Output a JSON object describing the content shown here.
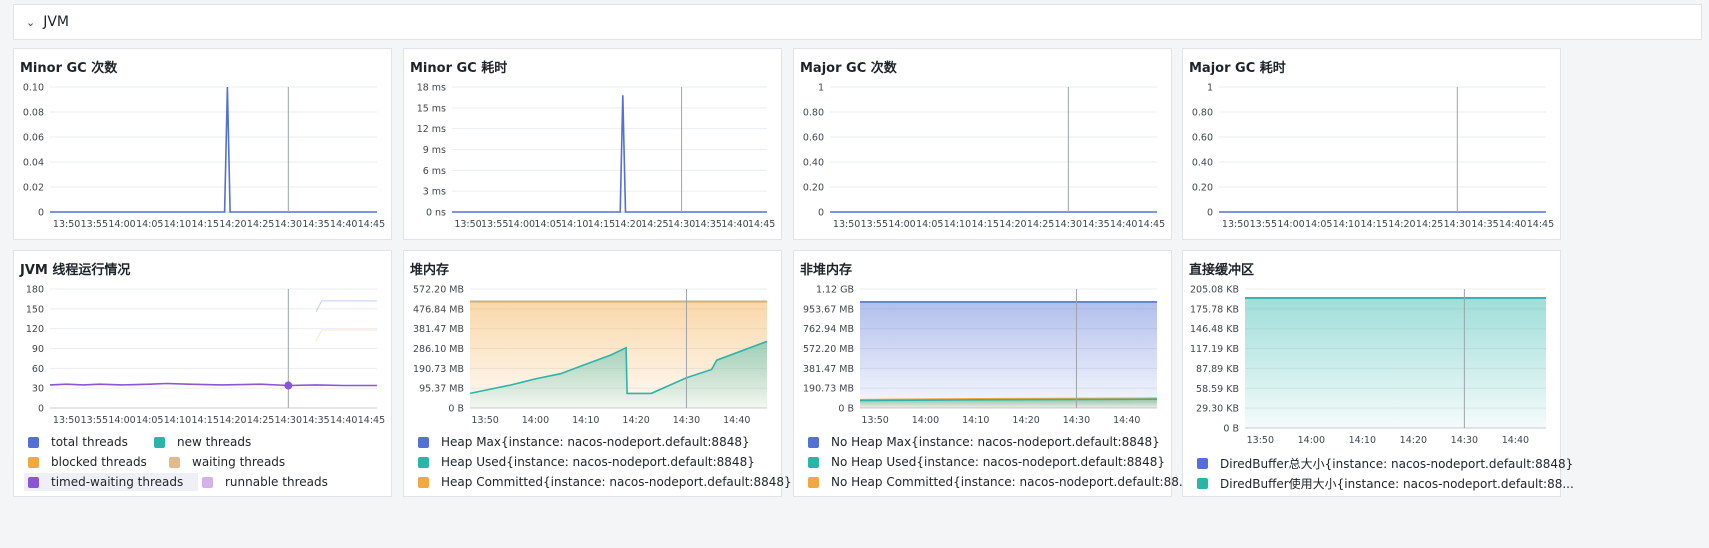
{
  "section": {
    "title": "JVM"
  },
  "colors": {
    "blue": "#5470d6",
    "green": "#2bb5aa",
    "orange": "#f2a741",
    "tan": "#e5b98a",
    "purple": "#8c55d6",
    "lilac": "#d7b0ea",
    "grid": "#ebedf0",
    "axis": "#c9ccd2"
  },
  "top_panels": [
    {
      "title": "Minor GC 次数"
    },
    {
      "title": "Minor GC 耗时"
    },
    {
      "title": "Major GC 次数"
    },
    {
      "title": "Major GC 耗时"
    }
  ],
  "bottom_panels": [
    {
      "title": "JVM 线程运行情况",
      "legend": [
        {
          "label": "total threads",
          "color": "#5470d6"
        },
        {
          "label": "new threads",
          "color": "#2bb5aa"
        },
        {
          "label": "blocked threads",
          "color": "#f2a741"
        },
        {
          "label": "waiting threads",
          "color": "#e5b98a"
        },
        {
          "label": "timed-waiting threads",
          "color": "#8c55d6"
        },
        {
          "label": "runnable threads",
          "color": "#d7b0ea"
        }
      ]
    },
    {
      "title": "堆内存",
      "legend": [
        {
          "label": "Heap Max{instance: nacos-nodeport.default:8848}",
          "color": "#5470d6"
        },
        {
          "label": "Heap Used{instance: nacos-nodeport.default:8848}",
          "color": "#2bb5aa"
        },
        {
          "label": "Heap Committed{instance: nacos-nodeport.default:8848}",
          "color": "#f2a741"
        }
      ]
    },
    {
      "title": "非堆内存",
      "legend": [
        {
          "label": "No Heap Max{instance: nacos-nodeport.default:8848}",
          "color": "#5470d6"
        },
        {
          "label": "No Heap Used{instance: nacos-nodeport.default:8848}",
          "color": "#2bb5aa"
        },
        {
          "label": "No Heap Committed{instance: nacos-nodeport.default:88...",
          "color": "#f2a741"
        }
      ]
    },
    {
      "title": "直接缓冲区",
      "legend": [
        {
          "label": "DiredBuffer总大小{instance: nacos-nodeport.default:8848}",
          "color": "#5470d6"
        },
        {
          "label": "DiredBuffer使用大小{instance: nacos-nodeport.default:88...",
          "color": "#2bb5aa"
        }
      ]
    }
  ],
  "chart_data": [
    {
      "type": "line",
      "title": "Minor GC 次数",
      "yticks": [
        "0",
        "0.02",
        "0.04",
        "0.06",
        "0.08",
        "0.10"
      ],
      "ylim": [
        0,
        0.1
      ],
      "xticks": [
        "13:50",
        "13:55",
        "14:00",
        "14:05",
        "14:10",
        "14:15",
        "14:20",
        "14:25",
        "14:30",
        "14:35",
        "14:40",
        "14:45"
      ],
      "xlim": [
        "13:47",
        "14:46"
      ],
      "cursor": "14:30",
      "series": [
        {
          "color": "#5470d6",
          "points": [
            [
              "13:47",
              0
            ],
            [
              "14:18.5",
              0
            ],
            [
              "14:19",
              0.1
            ],
            [
              "14:19.5",
              0
            ],
            [
              "14:46",
              0
            ]
          ]
        }
      ]
    },
    {
      "type": "line",
      "title": "Minor GC 耗时",
      "yticks": [
        "0 ns",
        "3 ms",
        "6 ms",
        "9 ms",
        "12 ms",
        "15 ms",
        "18 ms"
      ],
      "ylim": [
        0,
        18
      ],
      "xticks": [
        "13:50",
        "13:55",
        "14:00",
        "14:05",
        "14:10",
        "14:15",
        "14:20",
        "14:25",
        "14:30",
        "14:35",
        "14:40",
        "14:45"
      ],
      "xlim": [
        "13:47",
        "14:46"
      ],
      "cursor": "14:30",
      "series": [
        {
          "color": "#5470d6",
          "points": [
            [
              "13:47",
              0
            ],
            [
              "14:18.5",
              0
            ],
            [
              "14:19",
              16.8
            ],
            [
              "14:19.5",
              0
            ],
            [
              "14:46",
              0
            ]
          ]
        }
      ]
    },
    {
      "type": "line",
      "title": "Major GC 次数",
      "yticks": [
        "0",
        "0.20",
        "0.40",
        "0.60",
        "0.80",
        "1"
      ],
      "ylim": [
        0,
        1
      ],
      "xticks": [
        "13:50",
        "13:55",
        "14:00",
        "14:05",
        "14:10",
        "14:15",
        "14:20",
        "14:25",
        "14:30",
        "14:35",
        "14:40",
        "14:45"
      ],
      "xlim": [
        "13:47",
        "14:46"
      ],
      "cursor": "14:30",
      "series": [
        {
          "color": "#5470d6",
          "points": [
            [
              "13:47",
              0
            ],
            [
              "14:46",
              0
            ]
          ]
        }
      ]
    },
    {
      "type": "line",
      "title": "Major GC 耗时",
      "yticks": [
        "0",
        "0.20",
        "0.40",
        "0.60",
        "0.80",
        "1"
      ],
      "ylim": [
        0,
        1
      ],
      "xticks": [
        "13:50",
        "13:55",
        "14:00",
        "14:05",
        "14:10",
        "14:15",
        "14:20",
        "14:25",
        "14:30",
        "14:35",
        "14:40",
        "14:45"
      ],
      "xlim": [
        "13:47",
        "14:46"
      ],
      "cursor": "14:30",
      "series": [
        {
          "color": "#5470d6",
          "points": [
            [
              "13:47",
              0
            ],
            [
              "14:46",
              0
            ]
          ]
        }
      ]
    },
    {
      "type": "line",
      "title": "JVM 线程运行情况",
      "yticks": [
        "0",
        "30",
        "60",
        "90",
        "120",
        "150",
        "180"
      ],
      "ylim": [
        0,
        180
      ],
      "xticks": [
        "13:50",
        "13:55",
        "14:00",
        "14:05",
        "14:10",
        "14:15",
        "14:20",
        "14:25",
        "14:30",
        "14:35",
        "14:40",
        "14:45"
      ],
      "xlim": [
        "13:47",
        "14:46"
      ],
      "cursor": "14:30",
      "series": [
        {
          "name": "total threads",
          "color": "#5470d6",
          "faded": true,
          "points": [
            [
              "14:35",
              145
            ],
            [
              "14:36",
              162
            ],
            [
              "14:46",
              162
            ]
          ]
        },
        {
          "name": "waiting threads",
          "color": "#e5b98a",
          "faded": true,
          "points": [
            [
              "14:35",
              101
            ],
            [
              "14:36",
              118
            ],
            [
              "14:46",
              118
            ]
          ]
        },
        {
          "name": "timed-waiting threads",
          "color": "#8c55d6",
          "points": [
            [
              "13:47",
              35
            ],
            [
              "13:50",
              36
            ],
            [
              "13:53",
              35
            ],
            [
              "13:56",
              36
            ],
            [
              "14:00",
              35
            ],
            [
              "14:05",
              36
            ],
            [
              "14:08",
              37
            ],
            [
              "14:12",
              36
            ],
            [
              "14:18",
              35
            ],
            [
              "14:25",
              36
            ],
            [
              "14:30",
              34
            ],
            [
              "14:35",
              35
            ],
            [
              "14:40",
              34
            ],
            [
              "14:46",
              34
            ]
          ]
        }
      ]
    },
    {
      "type": "area",
      "title": "堆内存",
      "yticks": [
        "0 B",
        "95.37 MB",
        "190.73 MB",
        "286.10 MB",
        "381.47 MB",
        "476.84 MB",
        "572.20 MB"
      ],
      "ylim": [
        0,
        572.2
      ],
      "xticks": [
        "13:50",
        "14:00",
        "14:10",
        "14:20",
        "14:30",
        "14:40"
      ],
      "xlim": [
        "13:47",
        "14:46"
      ],
      "cursor": "14:30",
      "series": [
        {
          "name": "Heap Max{instance: nacos-nodeport.default:8848}",
          "color": "#5470d6",
          "points": [
            [
              "13:47",
              512
            ],
            [
              "14:46",
              512
            ]
          ]
        },
        {
          "name": "Heap Committed{instance: nacos-nodeport.default:8848}",
          "color": "#f2a741",
          "fill": true,
          "points": [
            [
              "13:47",
              512
            ],
            [
              "14:46",
              512
            ]
          ]
        },
        {
          "name": "Heap Used{instance: nacos-nodeport.default:8848}",
          "color": "#2bb5aa",
          "fill": true,
          "points": [
            [
              "13:47",
              70
            ],
            [
              "13:55",
              110
            ],
            [
              "14:00",
              140
            ],
            [
              "14:05",
              165
            ],
            [
              "14:10",
              210
            ],
            [
              "14:15",
              255
            ],
            [
              "14:18",
              290
            ],
            [
              "14:18.2",
              70
            ],
            [
              "14:23",
              70
            ],
            [
              "14:30",
              145
            ],
            [
              "14:35",
              185
            ],
            [
              "14:36",
              230
            ],
            [
              "14:46",
              320
            ]
          ]
        }
      ]
    },
    {
      "type": "area",
      "title": "非堆内存",
      "yticks": [
        "0 B",
        "190.73 MB",
        "381.47 MB",
        "572.20 MB",
        "762.94 MB",
        "953.67 MB",
        "1.12 GB"
      ],
      "ylim": [
        0,
        1144
      ],
      "xticks": [
        "13:50",
        "14:00",
        "14:10",
        "14:20",
        "14:30",
        "14:40"
      ],
      "xlim": [
        "13:47",
        "14:46"
      ],
      "cursor": "14:30",
      "series": [
        {
          "name": "No Heap Max{instance: nacos-nodeport.default:8848}",
          "color": "#5470d6",
          "fill": true,
          "points": [
            [
              "13:47",
              1020
            ],
            [
              "14:46",
              1020
            ]
          ]
        },
        {
          "name": "No Heap Committed{instance: nacos-nodeport.default:88...",
          "color": "#f2a741",
          "fill": true,
          "points": [
            [
              "13:47",
              80
            ],
            [
              "14:10",
              88
            ],
            [
              "14:46",
              94
            ]
          ]
        },
        {
          "name": "No Heap Used{instance: nacos-nodeport.default:8848}",
          "color": "#2bb5aa",
          "fill": true,
          "points": [
            [
              "13:47",
              72
            ],
            [
              "14:10",
              79
            ],
            [
              "14:46",
              85
            ]
          ]
        }
      ]
    },
    {
      "type": "area",
      "title": "直接缓冲区",
      "yticks": [
        "0 B",
        "29.30 KB",
        "58.59 KB",
        "87.89 KB",
        "117.19 KB",
        "146.48 KB",
        "175.78 KB",
        "205.08 KB"
      ],
      "ylim": [
        0,
        205.08
      ],
      "xticks": [
        "13:50",
        "14:00",
        "14:10",
        "14:20",
        "14:30",
        "14:40"
      ],
      "xlim": [
        "13:47",
        "14:46"
      ],
      "cursor": "14:30",
      "series": [
        {
          "name": "DiredBuffer总大小{instance: nacos-nodeport.default:8848}",
          "color": "#5470d6",
          "points": [
            [
              "13:47",
              192
            ],
            [
              "14:46",
              192
            ]
          ]
        },
        {
          "name": "DiredBuffer使用大小{instance: nacos-nodeport.default:88...",
          "color": "#2bb5aa",
          "fill": true,
          "points": [
            [
              "13:47",
              192
            ],
            [
              "14:46",
              192
            ]
          ]
        }
      ]
    }
  ]
}
